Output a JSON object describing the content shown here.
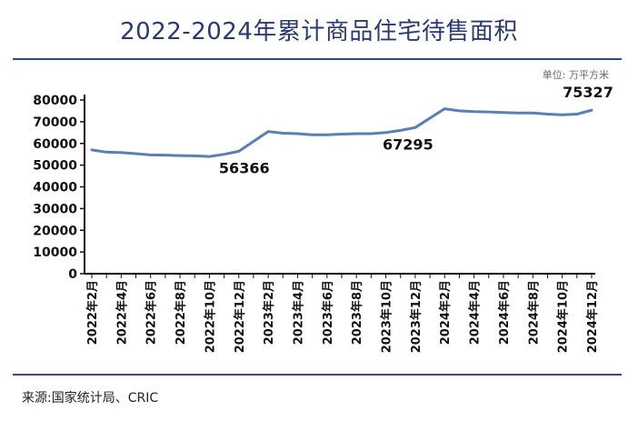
{
  "page": {
    "title": "2022-2024年累计商品住宅待售面积",
    "unit": "单位: 万平方米",
    "source": "来源:国家统计局、CRIC"
  },
  "chart_data": {
    "type": "line",
    "title": "2022-2024年累计商品住宅待售面积",
    "ylim": [
      0,
      80000
    ],
    "yticks": [
      0,
      10000,
      20000,
      30000,
      40000,
      50000,
      60000,
      70000,
      80000
    ],
    "categories": [
      "2022年2月",
      "2022年4月",
      "2022年6月",
      "2022年8月",
      "2022年10月",
      "2022年12月",
      "2023年2月",
      "2023年4月",
      "2023年6月",
      "2023年8月",
      "2023年10月",
      "2023年12月",
      "2024年2月",
      "2024年4月",
      "2024年6月",
      "2024年8月",
      "2024年10月",
      "2024年12月"
    ],
    "x": [
      "2022-02",
      "2022-03",
      "2022-04",
      "2022-05",
      "2022-06",
      "2022-07",
      "2022-08",
      "2022-09",
      "2022-10",
      "2022-11",
      "2022-12",
      "2023-02",
      "2023-03",
      "2023-04",
      "2023-05",
      "2023-06",
      "2023-07",
      "2023-08",
      "2023-09",
      "2023-10",
      "2023-11",
      "2023-12",
      "2024-02",
      "2024-03",
      "2024-04",
      "2024-05",
      "2024-06",
      "2024-07",
      "2024-08",
      "2024-09",
      "2024-10",
      "2024-11",
      "2024-12"
    ],
    "series": [
      {
        "values": [
          57000,
          56000,
          55800,
          55300,
          54700,
          54600,
          54400,
          54300,
          54000,
          55000,
          56366,
          65500,
          64700,
          64500,
          64000,
          64000,
          64300,
          64500,
          64500,
          65000,
          66000,
          67295,
          76000,
          75000,
          74700,
          74500,
          74200,
          74000,
          74000,
          73500,
          73200,
          73500,
          75327
        ],
        "color": "#5a7fb8"
      }
    ],
    "data_labels": [
      {
        "x": "2022-12",
        "text": "56366"
      },
      {
        "x": "2023-12",
        "text": "67295"
      },
      {
        "x": "2024-12",
        "text": "75327"
      }
    ],
    "grid": false,
    "legend": "none"
  }
}
